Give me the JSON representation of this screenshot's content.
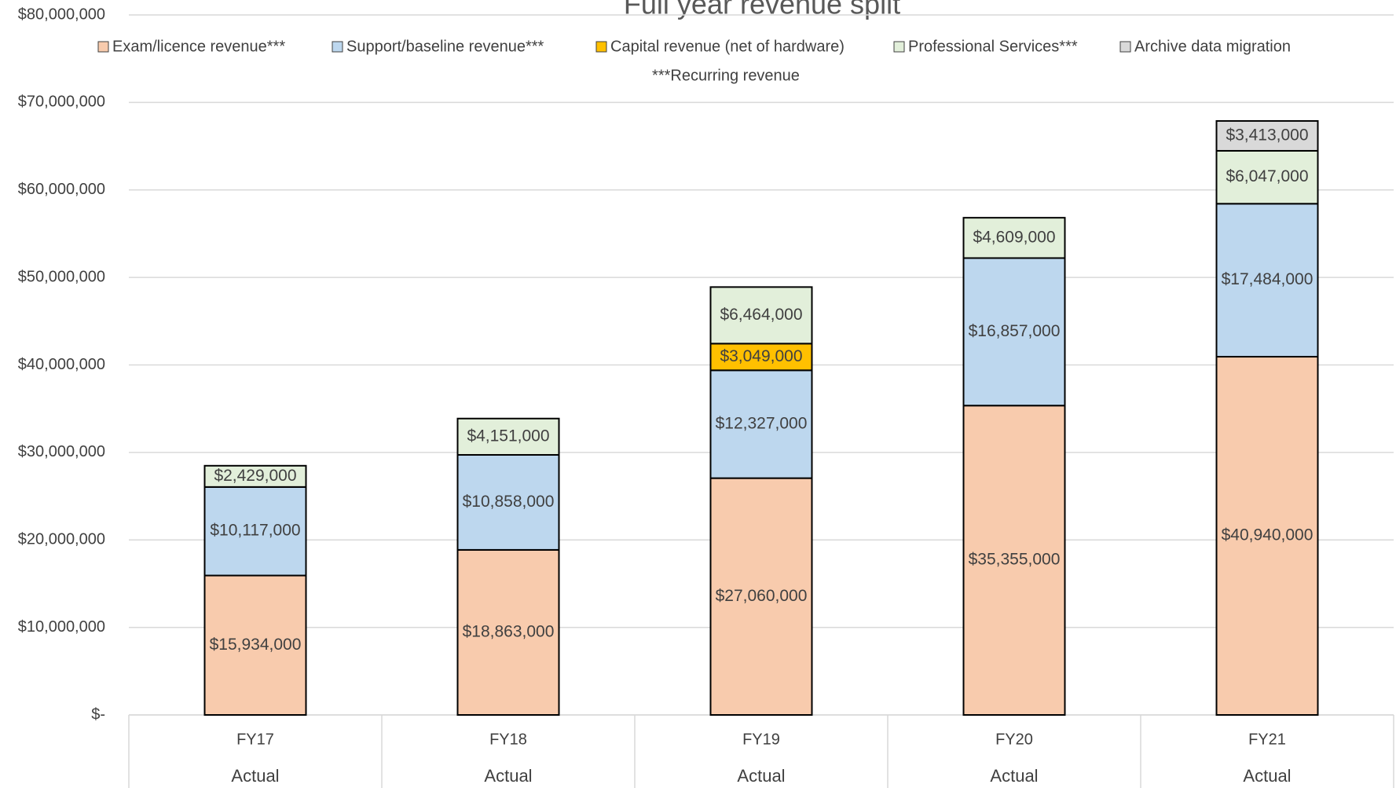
{
  "chart_data": {
    "type": "stacked_bar",
    "title": "Full year revenue split",
    "legend_note": "***Recurring revenue",
    "categories": [
      "FY17",
      "FY18",
      "FY19",
      "FY20",
      "FY21"
    ],
    "subcategories": [
      "Actual",
      "Actual",
      "Actual",
      "Actual",
      "Actual"
    ],
    "series": [
      {
        "name": "Exam/licence revenue***",
        "color": "#f8cbad",
        "values": [
          15934000,
          18863000,
          27060000,
          35355000,
          40940000
        ],
        "value_labels": [
          "$15,934,000",
          "$18,863,000",
          "$27,060,000",
          "$35,355,000",
          "$40,940,000"
        ]
      },
      {
        "name": "Support/baseline revenue***",
        "color": "#bdd7ee",
        "values": [
          10117000,
          10858000,
          12327000,
          16857000,
          17484000
        ],
        "value_labels": [
          "$10,117,000",
          "$10,858,000",
          "$12,327,000",
          "$16,857,000",
          "$17,484,000"
        ]
      },
      {
        "name": "Capital revenue (net of hardware)",
        "color": "#ffc000",
        "values": [
          null,
          null,
          3049000,
          null,
          null
        ],
        "value_labels": [
          null,
          null,
          "$3,049,000",
          null,
          null
        ]
      },
      {
        "name": "Professional Services***",
        "color": "#e2efda",
        "values": [
          2429000,
          4151000,
          6464000,
          4609000,
          6047000
        ],
        "value_labels": [
          "$2,429,000",
          "$4,151,000",
          "$6,464,000",
          "$4,609,000",
          "$6,047,000"
        ]
      },
      {
        "name": "Archive data migration",
        "color": "#d9d9d9",
        "values": [
          null,
          null,
          null,
          null,
          3413000
        ],
        "value_labels": [
          null,
          null,
          null,
          null,
          "$3,413,000"
        ]
      }
    ],
    "ylim": [
      0,
      80000000
    ],
    "yticks": [
      {
        "value": 0,
        "label": "$-"
      },
      {
        "value": 10000000,
        "label": "$10,000,000"
      },
      {
        "value": 20000000,
        "label": "$20,000,000"
      },
      {
        "value": 30000000,
        "label": "$30,000,000"
      },
      {
        "value": 40000000,
        "label": "$40,000,000"
      },
      {
        "value": 50000000,
        "label": "$50,000,000"
      },
      {
        "value": 60000000,
        "label": "$60,000,000"
      },
      {
        "value": 70000000,
        "label": "$70,000,000"
      },
      {
        "value": 80000000,
        "label": "$80,000,000"
      }
    ],
    "grid": true
  }
}
